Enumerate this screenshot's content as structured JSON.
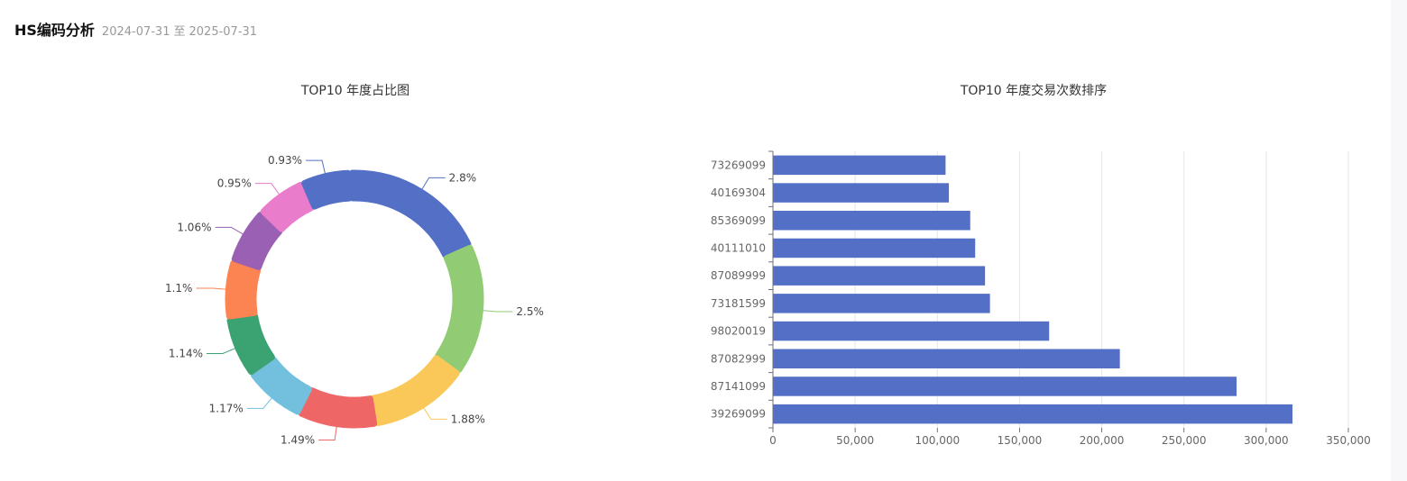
{
  "header": {
    "title": "HS编码分析",
    "date_start": "2024-07-31",
    "date_sep": "至",
    "date_end": "2025-07-31"
  },
  "chart_data": [
    {
      "type": "pie",
      "variant": "donut",
      "title": "TOP10 年度占比图",
      "slices": [
        {
          "label": "2.8%",
          "value": 2.8,
          "color": "#5470c6"
        },
        {
          "label": "2.5%",
          "value": 2.5,
          "color": "#91cc75"
        },
        {
          "label": "1.88%",
          "value": 1.88,
          "color": "#fac858"
        },
        {
          "label": "1.49%",
          "value": 1.49,
          "color": "#ee6666"
        },
        {
          "label": "1.17%",
          "value": 1.17,
          "color": "#73c0de"
        },
        {
          "label": "1.14%",
          "value": 1.14,
          "color": "#3ba272"
        },
        {
          "label": "1.1%",
          "value": 1.1,
          "color": "#fc8452"
        },
        {
          "label": "1.06%",
          "value": 1.06,
          "color": "#9a60b4"
        },
        {
          "label": "0.95%",
          "value": 0.95,
          "color": "#ea7ccc"
        },
        {
          "label": "0.93%",
          "value": 0.93,
          "color": "#5470c6"
        }
      ]
    },
    {
      "type": "bar",
      "orientation": "horizontal",
      "title": "TOP10 年度交易次数排序",
      "categories": [
        "39269099",
        "87141099",
        "87082999",
        "98020019",
        "73181599",
        "87089999",
        "40111010",
        "85369099",
        "40169304",
        "73269099"
      ],
      "values": [
        316000,
        282000,
        211000,
        168000,
        132000,
        129000,
        123000,
        120000,
        107000,
        105000
      ],
      "xlim": [
        0,
        350000
      ],
      "xticks": [
        "0",
        "50,000",
        "100,000",
        "150,000",
        "200,000",
        "250,000",
        "300,000",
        "350,000"
      ],
      "color": "#5470c6",
      "grid": true
    }
  ]
}
